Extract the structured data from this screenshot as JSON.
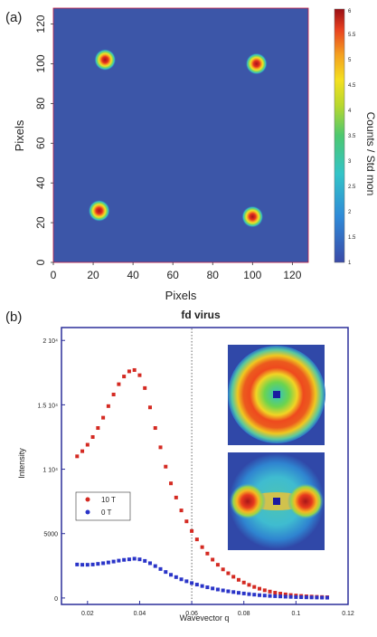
{
  "chart_data": [
    {
      "type": "heatmap",
      "panel_label": "(a)",
      "xlabel": "Pixels",
      "ylabel": "Pixels",
      "xlim": [
        0,
        128
      ],
      "ylim": [
        0,
        128
      ],
      "xticks": [
        "0",
        "20",
        "40",
        "60",
        "80",
        "100",
        "120"
      ],
      "yticks": [
        "0",
        "20",
        "40",
        "60",
        "80",
        "100",
        "120"
      ],
      "background_color": "#3c56a8",
      "spots": [
        {
          "x": 26,
          "y": 102,
          "peak": 5.5
        },
        {
          "x": 102,
          "y": 100,
          "peak": 5.5
        },
        {
          "x": 23,
          "y": 26,
          "peak": 5.5
        },
        {
          "x": 100,
          "y": 23,
          "peak": 5.5
        }
      ],
      "colorbar": {
        "label": "Counts / Std mon",
        "ticks": [
          "1",
          "1.5",
          "2",
          "2.5",
          "3",
          "3.5",
          "4",
          "4.5",
          "5",
          "5.5",
          "6"
        ],
        "range": [
          1,
          6
        ]
      }
    },
    {
      "type": "scatter",
      "panel_label": "(b)",
      "title": "fd virus",
      "xlabel": "Wavevector q",
      "ylabel": "Intensity",
      "xlim": [
        0.01,
        0.12
      ],
      "ylim": [
        -500,
        21000
      ],
      "xticks": [
        "0.02",
        "0.04",
        "0.06",
        "0.08",
        "0.1",
        "0.12"
      ],
      "yticks": [
        "0",
        "5000",
        "1 10⁴",
        "1.5 10⁴",
        "2 10⁴"
      ],
      "ytick_values": [
        0,
        5000,
        10000,
        15000,
        20000
      ],
      "vline_x": 0.06,
      "series": [
        {
          "name": "10 T",
          "color": "#d42a22",
          "x": [
            0.016,
            0.018,
            0.02,
            0.022,
            0.024,
            0.026,
            0.028,
            0.03,
            0.032,
            0.034,
            0.036,
            0.038,
            0.04,
            0.042,
            0.044,
            0.046,
            0.048,
            0.05,
            0.052,
            0.054,
            0.056,
            0.058,
            0.06,
            0.062,
            0.064,
            0.066,
            0.068,
            0.07,
            0.072,
            0.074,
            0.076,
            0.078,
            0.08,
            0.082,
            0.084,
            0.086,
            0.088,
            0.09,
            0.092,
            0.094,
            0.096,
            0.098,
            0.1,
            0.102,
            0.104,
            0.106,
            0.108,
            0.11,
            0.112
          ],
          "y": [
            11000,
            11400,
            11900,
            12500,
            13200,
            14000,
            14900,
            15800,
            16600,
            17200,
            17600,
            17700,
            17300,
            16300,
            14800,
            13200,
            11700,
            10200,
            8900,
            7800,
            6800,
            5950,
            5200,
            4550,
            3950,
            3450,
            2980,
            2580,
            2220,
            1920,
            1650,
            1410,
            1200,
            1020,
            860,
            720,
            600,
            500,
            410,
            340,
            280,
            230,
            190,
            160,
            130,
            110,
            90,
            75,
            60
          ]
        },
        {
          "name": "0 T",
          "color": "#2a34c8",
          "x": [
            0.016,
            0.018,
            0.02,
            0.022,
            0.024,
            0.026,
            0.028,
            0.03,
            0.032,
            0.034,
            0.036,
            0.038,
            0.04,
            0.042,
            0.044,
            0.046,
            0.048,
            0.05,
            0.052,
            0.054,
            0.056,
            0.058,
            0.06,
            0.062,
            0.064,
            0.066,
            0.068,
            0.07,
            0.072,
            0.074,
            0.076,
            0.078,
            0.08,
            0.082,
            0.084,
            0.086,
            0.088,
            0.09,
            0.092,
            0.094,
            0.096,
            0.098,
            0.1,
            0.102,
            0.104,
            0.106,
            0.108,
            0.11,
            0.112
          ],
          "y": [
            2600,
            2580,
            2580,
            2600,
            2650,
            2700,
            2760,
            2830,
            2900,
            2960,
            3000,
            3050,
            3000,
            2880,
            2700,
            2480,
            2250,
            2020,
            1800,
            1620,
            1450,
            1300,
            1160,
            1040,
            930,
            830,
            740,
            660,
            590,
            520,
            460,
            400,
            350,
            300,
            260,
            220,
            190,
            160,
            140,
            120,
            100,
            85,
            70,
            60,
            50,
            42,
            35,
            28,
            22
          ]
        }
      ],
      "insets": [
        "10 T 2D pattern (ring, field-aligned)",
        "0 T 2D pattern (isotropic ring)"
      ]
    }
  ]
}
